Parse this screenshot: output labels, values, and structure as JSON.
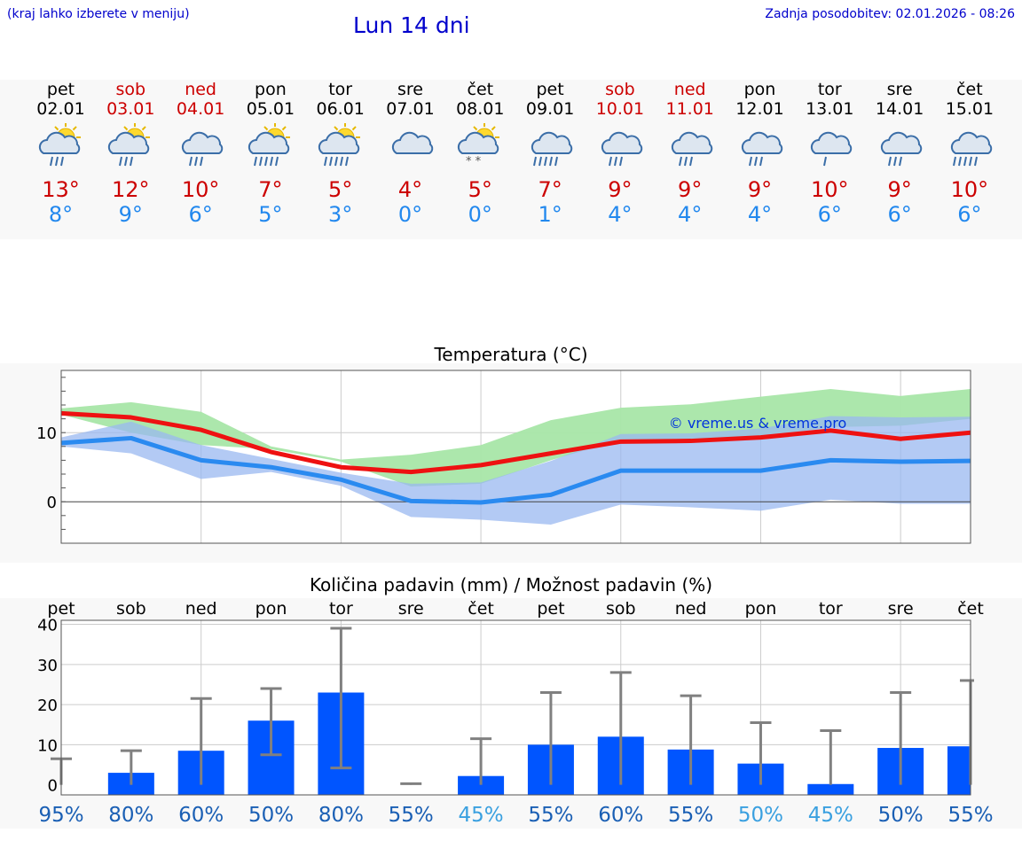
{
  "header": {
    "location_hint": "(kraj lahko izberete v meniju)",
    "title": "Lun 14 dni",
    "updated": "Zadnja posodobitev: 02.01.2026 - 08:26"
  },
  "days": [
    {
      "name": "pet",
      "date": "02.01",
      "icon": "partly-sunny-rain-icon",
      "max": "13°",
      "min": "8°",
      "weekend": false
    },
    {
      "name": "sob",
      "date": "03.01",
      "icon": "partly-sunny-rain-icon",
      "max": "12°",
      "min": "9°",
      "weekend": true
    },
    {
      "name": "ned",
      "date": "04.01",
      "icon": "cloud-rain-icon",
      "max": "10°",
      "min": "6°",
      "weekend": true
    },
    {
      "name": "pon",
      "date": "05.01",
      "icon": "partly-sunny-heavy-rain-icon",
      "max": "7°",
      "min": "5°",
      "weekend": false
    },
    {
      "name": "tor",
      "date": "06.01",
      "icon": "partly-sunny-heavy-rain-icon",
      "max": "5°",
      "min": "3°",
      "weekend": false
    },
    {
      "name": "sre",
      "date": "07.01",
      "icon": "cloud-icon",
      "max": "4°",
      "min": "0°",
      "weekend": false
    },
    {
      "name": "čet",
      "date": "08.01",
      "icon": "partly-sunny-snow-icon",
      "max": "5°",
      "min": "0°",
      "weekend": false
    },
    {
      "name": "pet",
      "date": "09.01",
      "icon": "cloud-heavy-rain-icon",
      "max": "7°",
      "min": "1°",
      "weekend": false
    },
    {
      "name": "sob",
      "date": "10.01",
      "icon": "cloud-rain-icon",
      "max": "9°",
      "min": "4°",
      "weekend": true
    },
    {
      "name": "ned",
      "date": "11.01",
      "icon": "cloud-rain-icon",
      "max": "9°",
      "min": "4°",
      "weekend": true
    },
    {
      "name": "pon",
      "date": "12.01",
      "icon": "cloud-rain-icon",
      "max": "9°",
      "min": "4°",
      "weekend": false
    },
    {
      "name": "tor",
      "date": "13.01",
      "icon": "cloud-light-rain-icon",
      "max": "10°",
      "min": "6°",
      "weekend": false
    },
    {
      "name": "sre",
      "date": "14.01",
      "icon": "cloud-rain-icon",
      "max": "9°",
      "min": "6°",
      "weekend": false
    },
    {
      "name": "čet",
      "date": "15.01",
      "icon": "cloud-heavy-rain-icon",
      "max": "10°",
      "min": "6°",
      "weekend": false
    }
  ],
  "colors": {
    "max_line": "#ee1111",
    "min_line": "#2a8af0",
    "max_band": "#a8e6a8",
    "min_band": "#9ab8f0",
    "overlap_band": "#6aaa8e",
    "bar": "#0055ff",
    "error": "#808080"
  },
  "chart_data": [
    {
      "type": "line",
      "title": "Temperatura (°C)",
      "watermark": "© vreme.us & vreme.pro",
      "categories": [
        "pet",
        "sob",
        "ned",
        "pon",
        "tor",
        "sre",
        "čet",
        "pet",
        "sob",
        "ned",
        "pon",
        "tor",
        "sre",
        "čet"
      ],
      "ylim": [
        -6,
        19
      ],
      "yticks": [
        0,
        10
      ],
      "series": [
        {
          "name": "max",
          "values": [
            12.8,
            12.2,
            10.4,
            7.2,
            5.0,
            4.3,
            5.3,
            7.0,
            8.7,
            8.8,
            9.3,
            10.3,
            9.1,
            10.0
          ]
        },
        {
          "name": "min",
          "values": [
            8.5,
            9.2,
            6.0,
            5.0,
            3.2,
            0.1,
            -0.1,
            1.0,
            4.5,
            4.5,
            4.5,
            6.0,
            5.8,
            5.9
          ]
        }
      ],
      "bands": [
        {
          "name": "max_range",
          "low": [
            12.6,
            10.0,
            8.2,
            7.6,
            5.8,
            2.2,
            2.6,
            6.0,
            9.0,
            9.0,
            9.4,
            10.8,
            11.0,
            12.0
          ],
          "high": [
            13.5,
            14.4,
            13.0,
            8.0,
            6.1,
            6.8,
            8.2,
            11.8,
            13.6,
            14.1,
            15.2,
            16.3,
            15.3,
            16.3
          ]
        },
        {
          "name": "min_range",
          "low": [
            8.0,
            7.0,
            3.3,
            4.3,
            2.3,
            -2.2,
            -2.6,
            -3.3,
            -0.4,
            -0.8,
            -1.3,
            0.3,
            -0.3,
            -0.3
          ],
          "high": [
            9.3,
            11.6,
            8.2,
            6.2,
            4.2,
            2.6,
            2.8,
            5.9,
            9.8,
            9.9,
            10.6,
            12.4,
            12.2,
            12.3
          ]
        }
      ]
    },
    {
      "type": "bar",
      "title": "Količina padavin (mm) / Možnost padavin (%)",
      "categories": [
        "pet",
        "sob",
        "ned",
        "pon",
        "tor",
        "sre",
        "čet",
        "pet",
        "sob",
        "ned",
        "pon",
        "tor",
        "sre",
        "čet"
      ],
      "ylim": [
        -2.5,
        41
      ],
      "yticks": [
        0,
        10,
        20,
        30,
        40
      ],
      "values": [
        0.0,
        3.0,
        8.5,
        16.0,
        23.0,
        0.0,
        2.2,
        10.0,
        12.0,
        8.8,
        5.3,
        0.2,
        9.2,
        9.6
      ],
      "err_low": [
        0,
        0,
        0,
        7.5,
        4.2,
        0,
        0,
        0,
        0,
        0,
        0,
        0,
        0,
        0
      ],
      "err_high": [
        6.5,
        8.5,
        21.5,
        24.0,
        39.0,
        0.3,
        11.5,
        23.0,
        28.0,
        22.2,
        15.5,
        13.5,
        23.0,
        26.0
      ],
      "probability": [
        "95%",
        "80%",
        "60%",
        "50%",
        "80%",
        "55%",
        "45%",
        "55%",
        "60%",
        "55%",
        "50%",
        "45%",
        "50%",
        "55%"
      ],
      "probability_colors": [
        "#1a5fb4",
        "#1a5fb4",
        "#1a5fb4",
        "#1a5fb4",
        "#1a5fb4",
        "#1a5fb4",
        "#3aa0e0",
        "#1a5fb4",
        "#1a5fb4",
        "#1a5fb4",
        "#3aa0e0",
        "#3aa0e0",
        "#1a5fb4",
        "#1a5fb4"
      ]
    }
  ]
}
